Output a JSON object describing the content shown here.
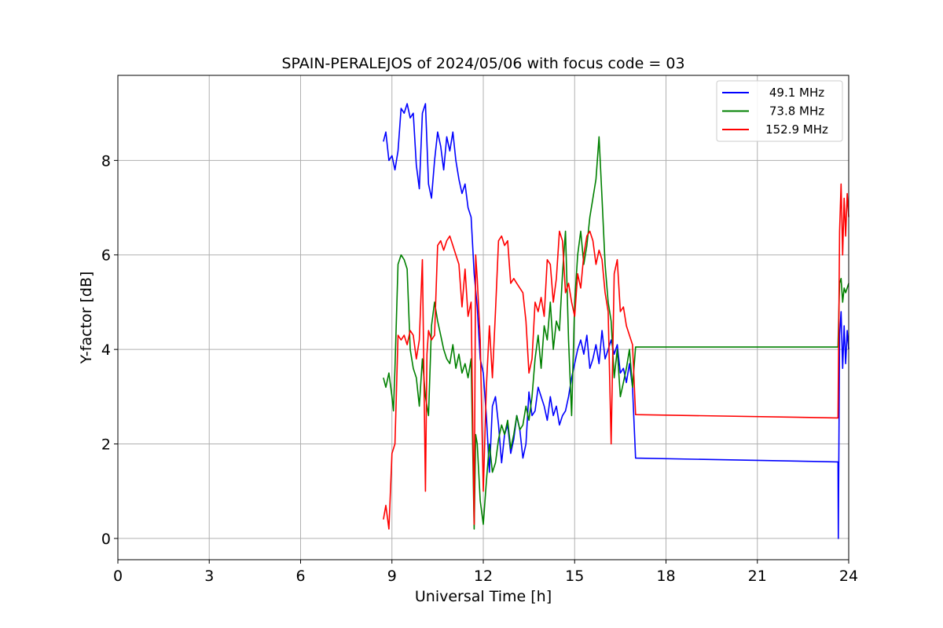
{
  "chart_data": {
    "type": "line",
    "title": "SPAIN-PERALEJOS of 2024/05/06 with focus code = 03",
    "xlabel": "Universal Time [h]",
    "ylabel": "Y-factor [dB]",
    "xlim": [
      0,
      24
    ],
    "ylim": [
      -0.45,
      9.8
    ],
    "xticks": [
      0,
      3,
      6,
      9,
      12,
      15,
      18,
      21,
      24
    ],
    "yticks": [
      0,
      2,
      4,
      6,
      8
    ],
    "xtick_labels": [
      "0",
      "3",
      "6",
      "9",
      "12",
      "15",
      "18",
      "21",
      "24"
    ],
    "ytick_labels": [
      "0",
      "2",
      "4",
      "6",
      "8"
    ],
    "grid": true,
    "legend": "top-right",
    "series": [
      {
        "name": "49.1 MHz",
        "color": "#0000ff",
        "x": [
          8.72,
          8.8,
          8.9,
          9.0,
          9.1,
          9.2,
          9.3,
          9.4,
          9.5,
          9.6,
          9.7,
          9.8,
          9.9,
          10.0,
          10.1,
          10.2,
          10.3,
          10.4,
          10.5,
          10.6,
          10.7,
          10.8,
          10.9,
          11.0,
          11.1,
          11.2,
          11.3,
          11.4,
          11.5,
          11.6,
          11.7,
          11.8,
          11.9,
          12.0,
          12.1,
          12.2,
          12.3,
          12.4,
          12.5,
          12.6,
          12.7,
          12.8,
          12.9,
          13.0,
          13.1,
          13.2,
          13.3,
          13.4,
          13.5,
          13.6,
          13.7,
          13.8,
          13.9,
          14.0,
          14.1,
          14.2,
          14.3,
          14.4,
          14.5,
          14.6,
          14.7,
          14.8,
          14.9,
          15.0,
          15.1,
          15.2,
          15.3,
          15.4,
          15.5,
          15.6,
          15.7,
          15.8,
          15.9,
          16.0,
          16.1,
          16.2,
          16.3,
          16.4,
          16.5,
          16.6,
          16.7,
          16.8,
          16.9,
          17.0,
          23.65,
          23.66,
          23.7,
          23.75,
          23.8,
          23.85,
          23.9,
          23.95,
          24.0
        ],
        "y": [
          8.4,
          8.6,
          8.0,
          8.1,
          7.8,
          8.2,
          9.1,
          9.0,
          9.2,
          8.9,
          9.0,
          7.9,
          7.4,
          9.0,
          9.2,
          7.5,
          7.2,
          8.0,
          8.6,
          8.3,
          7.8,
          8.5,
          8.2,
          8.6,
          8.0,
          7.6,
          7.3,
          7.5,
          7.0,
          6.8,
          5.6,
          4.9,
          3.8,
          3.5,
          2.6,
          1.4,
          2.8,
          3.0,
          2.4,
          1.6,
          2.2,
          2.4,
          1.8,
          2.1,
          2.6,
          2.3,
          1.7,
          2.0,
          3.1,
          2.6,
          2.7,
          3.2,
          3.0,
          2.8,
          2.5,
          3.0,
          2.6,
          2.8,
          2.4,
          2.6,
          2.7,
          3.0,
          3.4,
          3.7,
          4.0,
          4.2,
          3.9,
          4.3,
          3.6,
          3.8,
          4.1,
          3.7,
          4.4,
          3.8,
          4.0,
          4.2,
          3.9,
          4.1,
          3.5,
          3.6,
          3.3,
          3.7,
          3.2,
          1.7,
          1.62,
          0.0,
          4.3,
          4.8,
          3.6,
          4.5,
          3.7,
          4.4,
          4.0
        ]
      },
      {
        "name": "73.8 MHz",
        "color": "#008000",
        "x": [
          8.72,
          8.8,
          8.9,
          9.0,
          9.05,
          9.1,
          9.2,
          9.3,
          9.4,
          9.5,
          9.6,
          9.7,
          9.8,
          9.9,
          10.0,
          10.1,
          10.2,
          10.3,
          10.4,
          10.5,
          10.6,
          10.7,
          10.8,
          10.9,
          11.0,
          11.1,
          11.2,
          11.3,
          11.4,
          11.5,
          11.6,
          11.7,
          11.75,
          11.8,
          11.9,
          12.0,
          12.1,
          12.2,
          12.3,
          12.4,
          12.5,
          12.6,
          12.7,
          12.8,
          12.9,
          13.0,
          13.1,
          13.2,
          13.3,
          13.4,
          13.5,
          13.6,
          13.7,
          13.8,
          13.9,
          14.0,
          14.1,
          14.2,
          14.3,
          14.4,
          14.5,
          14.6,
          14.7,
          14.8,
          14.9,
          15.0,
          15.1,
          15.2,
          15.3,
          15.4,
          15.5,
          15.6,
          15.7,
          15.8,
          15.9,
          16.0,
          16.1,
          16.2,
          16.3,
          16.4,
          16.5,
          16.6,
          16.7,
          16.8,
          16.9,
          17.0,
          23.65,
          23.7,
          23.75,
          23.8,
          23.85,
          23.9,
          23.95,
          24.0
        ],
        "y": [
          3.4,
          3.2,
          3.5,
          3.0,
          2.7,
          3.6,
          5.8,
          6.0,
          5.9,
          5.7,
          4.0,
          3.6,
          3.4,
          2.8,
          3.8,
          3.0,
          2.6,
          4.5,
          5.0,
          4.6,
          4.3,
          4.0,
          3.8,
          3.7,
          4.1,
          3.6,
          3.9,
          3.5,
          3.7,
          3.4,
          3.8,
          0.2,
          2.2,
          2.0,
          0.8,
          0.3,
          1.2,
          2.0,
          1.4,
          1.6,
          2.1,
          2.4,
          2.2,
          2.5,
          1.9,
          2.2,
          2.6,
          2.3,
          2.4,
          2.8,
          2.5,
          3.0,
          3.8,
          4.3,
          3.6,
          4.5,
          4.2,
          5.0,
          4.0,
          4.6,
          4.4,
          5.6,
          6.5,
          4.2,
          2.6,
          5.0,
          6.0,
          6.5,
          5.8,
          6.2,
          6.8,
          7.2,
          7.6,
          8.5,
          7.2,
          5.8,
          5.0,
          4.6,
          3.4,
          4.0,
          3.0,
          3.3,
          3.6,
          4.0,
          3.2,
          4.05,
          4.05,
          5.4,
          5.5,
          5.0,
          5.3,
          5.2,
          5.3,
          5.4
        ]
      },
      {
        "name": "152.9 MHz",
        "color": "#ff0000",
        "x": [
          8.72,
          8.8,
          8.9,
          9.0,
          9.1,
          9.2,
          9.3,
          9.4,
          9.5,
          9.6,
          9.7,
          9.8,
          9.9,
          10.0,
          10.1,
          10.15,
          10.2,
          10.3,
          10.4,
          10.5,
          10.6,
          10.7,
          10.8,
          10.9,
          11.0,
          11.1,
          11.2,
          11.3,
          11.4,
          11.5,
          11.6,
          11.7,
          11.75,
          11.8,
          11.9,
          12.0,
          12.1,
          12.2,
          12.3,
          12.4,
          12.5,
          12.6,
          12.7,
          12.8,
          12.9,
          13.0,
          13.1,
          13.2,
          13.3,
          13.4,
          13.5,
          13.6,
          13.7,
          13.8,
          13.9,
          14.0,
          14.1,
          14.2,
          14.3,
          14.4,
          14.5,
          14.6,
          14.7,
          14.8,
          14.9,
          15.0,
          15.1,
          15.2,
          15.3,
          15.4,
          15.5,
          15.6,
          15.7,
          15.8,
          15.9,
          16.0,
          16.1,
          16.2,
          16.3,
          16.4,
          16.5,
          16.6,
          16.7,
          16.8,
          16.9,
          17.0,
          23.65,
          23.7,
          23.75,
          23.8,
          23.85,
          23.9,
          23.95,
          24.0
        ],
        "y": [
          0.4,
          0.7,
          0.2,
          1.8,
          2.0,
          4.3,
          4.2,
          4.3,
          4.1,
          4.4,
          4.3,
          3.8,
          4.2,
          5.9,
          1.0,
          3.9,
          4.4,
          4.2,
          4.3,
          6.2,
          6.3,
          6.1,
          6.3,
          6.4,
          6.2,
          6.0,
          5.8,
          4.9,
          5.7,
          4.7,
          5.0,
          0.3,
          6.0,
          5.5,
          4.2,
          1.0,
          3.2,
          4.5,
          3.4,
          4.8,
          6.3,
          6.4,
          6.2,
          6.3,
          5.4,
          5.5,
          5.4,
          5.3,
          5.2,
          4.6,
          3.5,
          3.8,
          5.0,
          4.8,
          5.1,
          4.7,
          5.9,
          5.8,
          5.0,
          5.5,
          6.5,
          6.3,
          5.2,
          5.4,
          5.0,
          4.7,
          5.6,
          5.3,
          6.0,
          6.4,
          6.5,
          6.3,
          5.8,
          6.1,
          5.9,
          5.2,
          4.8,
          2.0,
          5.6,
          5.9,
          4.8,
          4.9,
          4.5,
          4.3,
          4.1,
          2.62,
          2.55,
          6.5,
          7.5,
          6.0,
          7.2,
          6.4,
          7.3,
          6.8
        ]
      }
    ]
  }
}
